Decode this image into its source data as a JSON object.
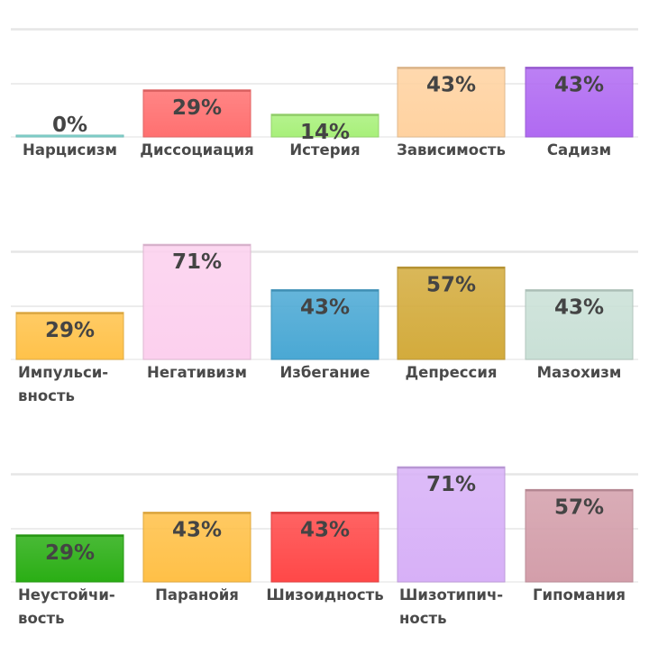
{
  "chart_data": [
    {
      "type": "bar",
      "categories": [
        [
          "Нарцисизм"
        ],
        [
          "Диссоциация"
        ],
        [
          "Истерия"
        ],
        [
          "Зависимость"
        ],
        [
          "Садизм"
        ]
      ],
      "values": [
        0,
        29,
        14,
        43,
        43
      ],
      "value_labels": [
        "0%",
        "29%",
        "14%",
        "43%",
        "43%"
      ],
      "colors": [
        "#7fd6d0",
        "#ff7070",
        "#a8f07a",
        "#ffd2a0",
        "#b06af2"
      ],
      "ylim": [
        0,
        100
      ],
      "grid": true
    },
    {
      "type": "bar",
      "categories": [
        [
          "Импульси-",
          "вность"
        ],
        [
          "Негативизм"
        ],
        [
          "Избегание"
        ],
        [
          "Депрессия"
        ],
        [
          "Мазохизм"
        ]
      ],
      "values": [
        29,
        71,
        43,
        57,
        43
      ],
      "value_labels": [
        "29%",
        "71%",
        "43%",
        "57%",
        "43%"
      ],
      "colors": [
        "#ffc24a",
        "#fcd0ee",
        "#4aa8d4",
        "#d3ab3c",
        "#c9e0d6"
      ],
      "ylim": [
        0,
        100
      ],
      "grid": true
    },
    {
      "type": "bar",
      "categories": [
        [
          "Неустойчи-",
          "вость"
        ],
        [
          "Паранойя"
        ],
        [
          "Шизоидность"
        ],
        [
          "Шизотипич-",
          "ность"
        ],
        [
          "Гипомания"
        ]
      ],
      "values": [
        29,
        43,
        43,
        71,
        57
      ],
      "value_labels": [
        "29%",
        "43%",
        "43%",
        "71%",
        "57%"
      ],
      "colors": [
        "#2aae14",
        "#ffc047",
        "#ff4848",
        "#d7b0f7",
        "#d39eaa"
      ],
      "ylim": [
        0,
        100
      ],
      "grid": true
    }
  ]
}
